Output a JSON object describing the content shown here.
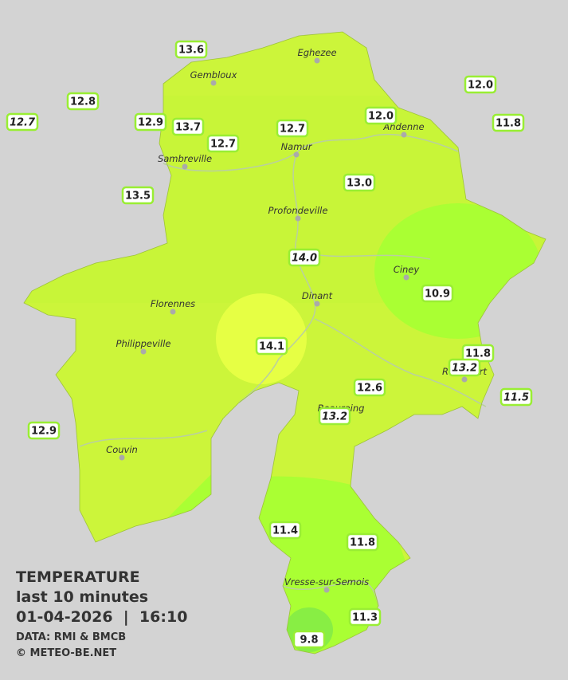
{
  "towns": [
    "Eghezee",
    "Gembloux",
    "Andenne",
    "Namur",
    "Sambreville",
    "Profondeville",
    "Ciney",
    "Dinant",
    "Florennes",
    "Philippeville",
    "Rochefort",
    "Beauraing",
    "Couvin",
    "Vresse-sur-Semois"
  ],
  "stations": [
    {
      "reading": "13.6"
    },
    {
      "reading": "12.8"
    },
    {
      "reading": "12.7",
      "italic": true
    },
    {
      "reading": "12.9"
    },
    {
      "reading": "13.7"
    },
    {
      "reading": "12.7"
    },
    {
      "reading": "12.7"
    },
    {
      "reading": "12.0"
    },
    {
      "reading": "12.0"
    },
    {
      "reading": "11.8"
    },
    {
      "reading": "13.5"
    },
    {
      "reading": "13.0"
    },
    {
      "reading": "14.0",
      "italic": true
    },
    {
      "reading": "10.9"
    },
    {
      "reading": "14.1"
    },
    {
      "reading": "11.8"
    },
    {
      "reading": "13.2",
      "italic": true
    },
    {
      "reading": "12.6"
    },
    {
      "reading": "13.2",
      "italic": true
    },
    {
      "reading": "11.5",
      "italic": true
    },
    {
      "reading": "12.9"
    },
    {
      "reading": "11.4"
    },
    {
      "reading": "11.8"
    },
    {
      "reading": "11.3"
    },
    {
      "reading": "9.8"
    }
  ],
  "legend": {
    "title": "TEMPERATURE",
    "period": "last 10 minutes",
    "timestamp": "01-04-2026  |  16:10",
    "source": "DATA: RMI & BMCB",
    "copyright": "© METEO-BE.NET"
  }
}
